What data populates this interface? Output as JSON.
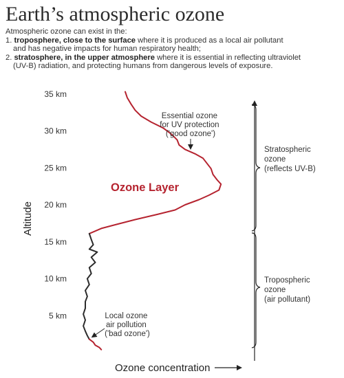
{
  "title": "Earth’s atmospheric ozone",
  "intro": {
    "lead": "Atmospheric ozone can exist in the:",
    "item1_num": "1.",
    "item1_bold": "troposphere, close to the surface",
    "item1_rest": " where it is produced as a local air pollutant",
    "item1_cont": "and has negative impacts for human respiratory health;",
    "item2_num": "2.",
    "item2_bold": "stratosphere, in the upper atmosphere",
    "item2_rest": " where it is essential in reflecting ultraviolet",
    "item2_cont": "(UV-B) radiation, and protecting humans from dangerous levels of exposure."
  },
  "colors": {
    "ozone_line": "#b5232f",
    "text": "#333333",
    "axis": "#222222"
  },
  "chart_data": {
    "type": "line",
    "xlabel": "Ozone concentration",
    "ylabel": "Altitude",
    "ylim": [
      0,
      37
    ],
    "y_ticks": [
      {
        "value": 5,
        "label": "5 km"
      },
      {
        "value": 10,
        "label": "10 km"
      },
      {
        "value": 15,
        "label": "15 km"
      },
      {
        "value": 20,
        "label": "20 km"
      },
      {
        "value": 25,
        "label": "25 km"
      },
      {
        "value": 30,
        "label": "30 km"
      },
      {
        "value": 35,
        "label": "35 km"
      }
    ],
    "x_relative_scale": [
      0,
      100
    ],
    "series": [
      {
        "name": "Ozone Layer",
        "color": "#b5232f",
        "points": [
          [
            20,
            35.3
          ],
          [
            21,
            34.5
          ],
          [
            23,
            33.6
          ],
          [
            25,
            32.8
          ],
          [
            28,
            32.0
          ],
          [
            33,
            31.2
          ],
          [
            39,
            30.4
          ],
          [
            43,
            29.6
          ],
          [
            46,
            28.8
          ],
          [
            47,
            28.1
          ],
          [
            50,
            27.5
          ],
          [
            55,
            26.9
          ],
          [
            59,
            26.3
          ],
          [
            61,
            25.6
          ],
          [
            63,
            24.9
          ],
          [
            64,
            24.1
          ],
          [
            66,
            23.4
          ],
          [
            68,
            22.8
          ],
          [
            67,
            22.0
          ],
          [
            62,
            21.3
          ],
          [
            57,
            20.7
          ],
          [
            50,
            20.0
          ],
          [
            45,
            19.3
          ],
          [
            36,
            18.7
          ],
          [
            25,
            18.0
          ],
          [
            15,
            17.3
          ],
          [
            8,
            16.8
          ],
          [
            2,
            16.1
          ]
        ]
      },
      {
        "name": "",
        "color": "#2b2b2b",
        "points": [
          [
            2,
            16.1
          ],
          [
            3,
            15.3
          ],
          [
            4,
            14.6
          ],
          [
            2,
            14.0
          ],
          [
            6,
            13.6
          ],
          [
            3,
            12.9
          ],
          [
            5,
            12.2
          ],
          [
            2,
            11.5
          ],
          [
            3,
            10.7
          ],
          [
            1,
            10.0
          ],
          [
            2,
            9.2
          ],
          [
            0,
            8.4
          ],
          [
            1,
            7.6
          ],
          [
            0,
            6.9
          ],
          [
            0,
            6.0
          ],
          [
            -1,
            5.2
          ],
          [
            0,
            4.4
          ],
          [
            -1,
            3.6
          ],
          [
            0,
            2.9
          ],
          [
            1,
            2.3
          ],
          [
            2,
            1.8
          ]
        ]
      },
      {
        "name": "",
        "color": "#b5232f",
        "points": [
          [
            2,
            1.8
          ],
          [
            4,
            1.4
          ],
          [
            5,
            1.0
          ],
          [
            7,
            0.7
          ],
          [
            8,
            0.4
          ]
        ]
      }
    ],
    "annotations": {
      "ozone_layer": "Ozone Layer",
      "essential": [
        "Essential ozone",
        "for UV protection",
        "('good ozone')"
      ],
      "local": [
        "Local ozone",
        "air pollution",
        "('bad ozone')"
      ]
    },
    "brackets": {
      "strat": [
        "Stratospheric",
        "ozone",
        "(reflects UV-B)"
      ],
      "trop": [
        "Tropospheric",
        "ozone",
        "(air pollutant)"
      ]
    }
  }
}
